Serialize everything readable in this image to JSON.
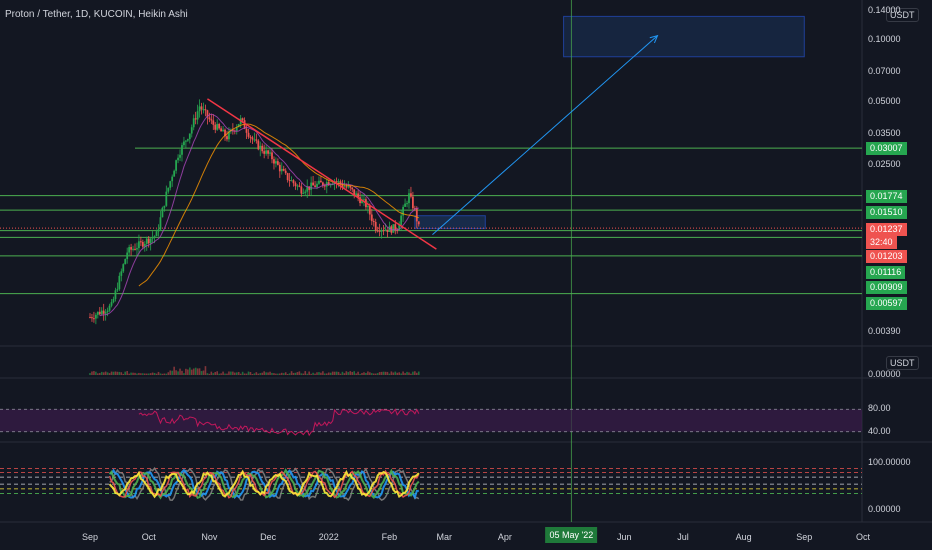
{
  "header": {
    "title": "Proton / Tether, 1D, KUCOIN, Heikin Ashi"
  },
  "currency_badges": [
    "USDT",
    "USDT"
  ],
  "price_axis": {
    "labels": [
      "0.14000",
      "0.10000",
      "0.07000",
      "0.05000",
      "0.03500",
      "0.02500",
      "0.00390"
    ],
    "values": [
      0.14,
      0.1,
      0.07,
      0.05,
      0.035,
      0.025,
      0.0039
    ]
  },
  "price_tags": [
    {
      "label": "0.03007",
      "value": 0.03007,
      "color": "#26a650"
    },
    {
      "label": "0.01774",
      "value": 0.01774,
      "color": "#26a650"
    },
    {
      "label": "0.01510",
      "value": 0.0151,
      "color": "#26a650"
    },
    {
      "label": "0.01237",
      "value": 0.01237,
      "color": "#ef5350"
    },
    {
      "label": "32:40",
      "value": null,
      "color": "#ef5350"
    },
    {
      "label": "0.01203",
      "value": 0.01203,
      "color": "#ef5350"
    },
    {
      "label": "0.01116",
      "value": 0.01116,
      "color": "#26a650"
    },
    {
      "label": "0.00909",
      "value": 0.00909,
      "color": "#26a650"
    },
    {
      "label": "0.00597",
      "value": 0.00597,
      "color": "#26a650"
    }
  ],
  "volume_axis": {
    "labels": [
      "0.00000"
    ]
  },
  "rsi_axis": {
    "labels": [
      "80.00",
      "40.00"
    ],
    "values": [
      80,
      40
    ]
  },
  "osc_axis": {
    "labels": [
      "100.00000",
      "0.00000"
    ],
    "values": [
      100,
      0
    ]
  },
  "time_axis": {
    "labels": [
      "Sep",
      "Oct",
      "Nov",
      "Dec",
      "2022",
      "Feb",
      "Mar",
      "Apr",
      "05 May '22",
      "Jun",
      "Jul",
      "Aug",
      "Sep",
      "Oct"
    ],
    "highlight": "05 May '22"
  },
  "chart_data": {
    "type": "candlestick",
    "symbol": "Proton / Tether",
    "interval": "1D",
    "exchange": "KUCOIN",
    "style": "Heikin Ashi",
    "scale": "log",
    "x_start": "2021-09-01",
    "x_end": "2022-10-31",
    "ylim": [
      0.0035,
      0.14
    ],
    "approx_path": [
      {
        "date": "2021-09-01",
        "price": 0.0046
      },
      {
        "date": "2021-09-12",
        "price": 0.0052
      },
      {
        "date": "2021-09-20",
        "price": 0.0095
      },
      {
        "date": "2021-09-28",
        "price": 0.0105
      },
      {
        "date": "2021-10-05",
        "price": 0.0115
      },
      {
        "date": "2021-10-10",
        "price": 0.018
      },
      {
        "date": "2021-10-16",
        "price": 0.028
      },
      {
        "date": "2021-10-22",
        "price": 0.036
      },
      {
        "date": "2021-10-27",
        "price": 0.048
      },
      {
        "date": "2021-11-02",
        "price": 0.04
      },
      {
        "date": "2021-11-10",
        "price": 0.034
      },
      {
        "date": "2021-11-17",
        "price": 0.041
      },
      {
        "date": "2021-11-24",
        "price": 0.032
      },
      {
        "date": "2021-12-03",
        "price": 0.027
      },
      {
        "date": "2021-12-10",
        "price": 0.022
      },
      {
        "date": "2021-12-18",
        "price": 0.019
      },
      {
        "date": "2021-12-26",
        "price": 0.02
      },
      {
        "date": "2022-01-04",
        "price": 0.021
      },
      {
        "date": "2022-01-12",
        "price": 0.019
      },
      {
        "date": "2022-01-20",
        "price": 0.016
      },
      {
        "date": "2022-01-25",
        "price": 0.0125
      },
      {
        "date": "2022-02-01",
        "price": 0.0122
      },
      {
        "date": "2022-02-05",
        "price": 0.0125
      },
      {
        "date": "2022-02-09",
        "price": 0.016
      },
      {
        "date": "2022-02-11",
        "price": 0.0178
      },
      {
        "date": "2022-02-14",
        "price": 0.015
      },
      {
        "date": "2022-02-16",
        "price": 0.0124
      }
    ],
    "horizontal_levels": [
      0.03007,
      0.01774,
      0.0151,
      0.01203,
      0.01116,
      0.00909,
      0.00597
    ],
    "current_price": 0.01237,
    "trendline": [
      {
        "date": "2021-10-31",
        "price": 0.052
      },
      {
        "date": "2022-02-25",
        "price": 0.0098
      }
    ],
    "projection_arrow": [
      {
        "date": "2022-02-23",
        "price": 0.0115
      },
      {
        "date": "2022-06-18",
        "price": 0.105
      }
    ],
    "target_box": {
      "x": [
        "2022-05-01",
        "2022-09-01"
      ],
      "y": [
        0.083,
        0.13
      ]
    },
    "entry_box": {
      "x": [
        "2022-02-14",
        "2022-03-22"
      ],
      "y": [
        0.0123,
        0.0142
      ]
    },
    "vertical_marker": "2022-05-05",
    "indicators": [
      "Volume",
      "RSI",
      "Oscillator"
    ]
  },
  "colors": {
    "background": "#131722",
    "up": "#26a650",
    "down": "#ef5350",
    "level_line": "#4caf50",
    "trendline": "#f23645",
    "arrow": "#2196f3",
    "rsi": "#c2185b",
    "rsi_band": "#3a1d4a"
  }
}
